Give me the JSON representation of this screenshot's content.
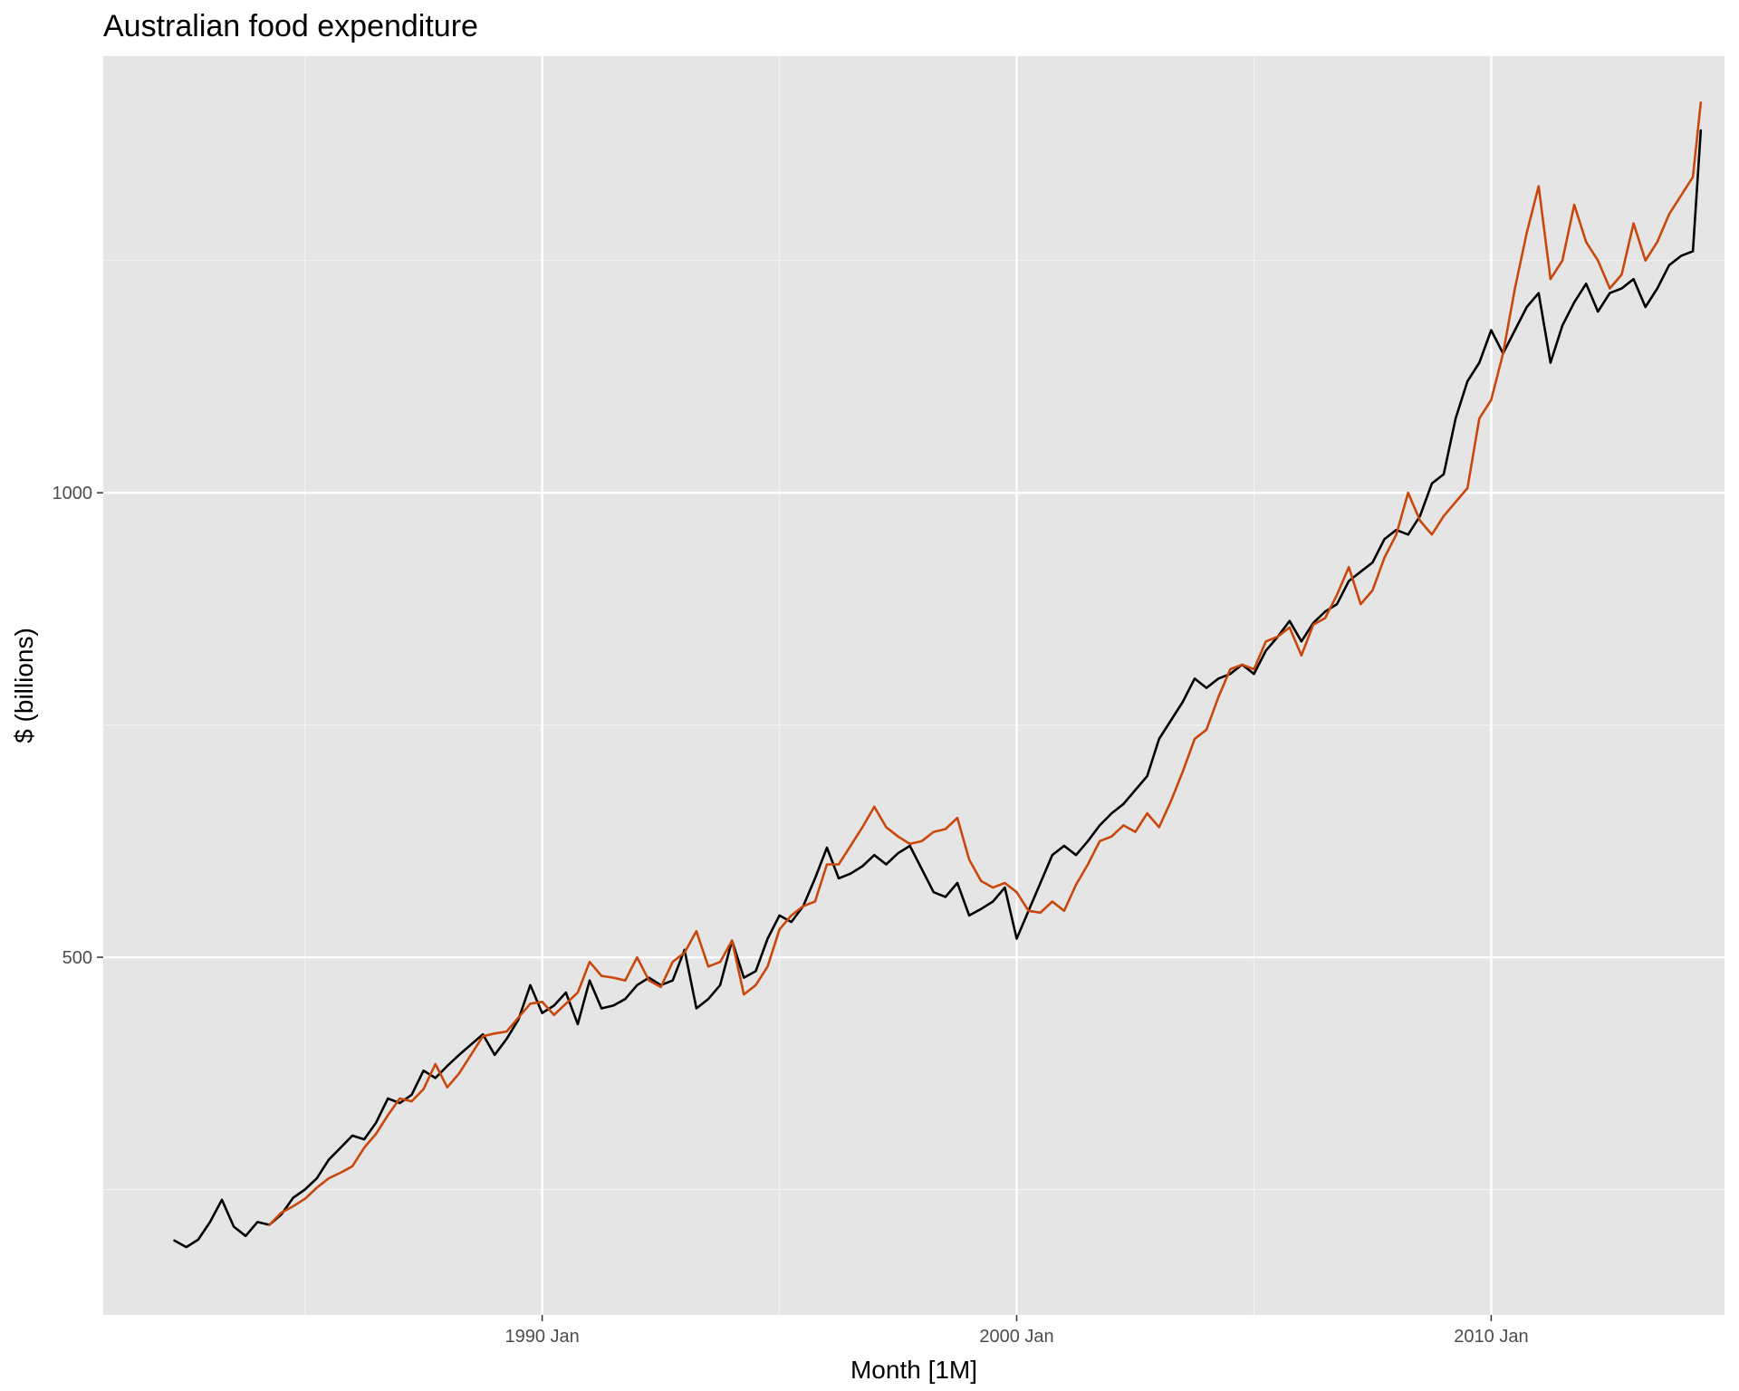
{
  "chart_data": {
    "type": "line",
    "title": "Australian food expenditure",
    "xlabel": "Month [1M]",
    "ylabel": "$ (billions)",
    "x_ticks": [
      "1990 Jan",
      "2000 Jan",
      "2010 Jan"
    ],
    "y_ticks": [
      500,
      1000
    ],
    "xlim": [
      "1980-10",
      "2014-12"
    ],
    "ylim": [
      115,
      1470
    ],
    "grid": true,
    "legend": "none",
    "colors": {
      "panel": "#e5e5e5",
      "grid_major": "#ffffff",
      "grid_minor": "#f2f2f2",
      "tick_text": "#4d4d4d",
      "series_actual": "#000000",
      "series_fitted": "#c9470b"
    },
    "series": [
      {
        "color": "#000000",
        "points": [
          [
            "1982-04",
            195
          ],
          [
            "1982-07",
            188
          ],
          [
            "1982-10",
            196
          ],
          [
            "1983-01",
            215
          ],
          [
            "1983-04",
            239
          ],
          [
            "1983-07",
            210
          ],
          [
            "1983-10",
            200
          ],
          [
            "1984-01",
            215
          ],
          [
            "1984-04",
            212
          ],
          [
            "1984-07",
            223
          ],
          [
            "1984-10",
            241
          ],
          [
            "1985-01",
            250
          ],
          [
            "1985-04",
            262
          ],
          [
            "1985-07",
            282
          ],
          [
            "1985-10",
            295
          ],
          [
            "1986-01",
            308
          ],
          [
            "1986-04",
            304
          ],
          [
            "1986-07",
            322
          ],
          [
            "1986-10",
            348
          ],
          [
            "1987-01",
            343
          ],
          [
            "1987-04",
            352
          ],
          [
            "1987-07",
            378
          ],
          [
            "1987-10",
            370
          ],
          [
            "1988-01",
            383
          ],
          [
            "1988-04",
            395
          ],
          [
            "1988-07",
            406
          ],
          [
            "1988-10",
            417
          ],
          [
            "1989-01",
            395
          ],
          [
            "1989-04",
            412
          ],
          [
            "1989-07",
            433
          ],
          [
            "1989-10",
            470
          ],
          [
            "1990-01",
            440
          ],
          [
            "1990-04",
            448
          ],
          [
            "1990-07",
            462
          ],
          [
            "1990-10",
            428
          ],
          [
            "1991-01",
            475
          ],
          [
            "1991-04",
            445
          ],
          [
            "1991-07",
            448
          ],
          [
            "1991-10",
            455
          ],
          [
            "1992-01",
            470
          ],
          [
            "1992-04",
            478
          ],
          [
            "1992-07",
            470
          ],
          [
            "1992-10",
            475
          ],
          [
            "1993-01",
            508
          ],
          [
            "1993-04",
            445
          ],
          [
            "1993-07",
            455
          ],
          [
            "1993-10",
            470
          ],
          [
            "1994-01",
            518
          ],
          [
            "1994-04",
            478
          ],
          [
            "1994-07",
            485
          ],
          [
            "1994-10",
            520
          ],
          [
            "1995-01",
            545
          ],
          [
            "1995-04",
            538
          ],
          [
            "1995-07",
            555
          ],
          [
            "1995-10",
            585
          ],
          [
            "1996-01",
            618
          ],
          [
            "1996-04",
            585
          ],
          [
            "1996-07",
            590
          ],
          [
            "1996-10",
            598
          ],
          [
            "1997-01",
            610
          ],
          [
            "1997-04",
            600
          ],
          [
            "1997-07",
            612
          ],
          [
            "1997-10",
            620
          ],
          [
            "1998-01",
            595
          ],
          [
            "1998-04",
            570
          ],
          [
            "1998-07",
            565
          ],
          [
            "1998-10",
            580
          ],
          [
            "1999-01",
            545
          ],
          [
            "1999-04",
            552
          ],
          [
            "1999-07",
            560
          ],
          [
            "1999-10",
            575
          ],
          [
            "2000-01",
            520
          ],
          [
            "2000-04",
            550
          ],
          [
            "2000-07",
            580
          ],
          [
            "2000-10",
            610
          ],
          [
            "2001-01",
            620
          ],
          [
            "2001-04",
            610
          ],
          [
            "2001-07",
            625
          ],
          [
            "2001-10",
            642
          ],
          [
            "2002-01",
            655
          ],
          [
            "2002-04",
            665
          ],
          [
            "2002-07",
            680
          ],
          [
            "2002-10",
            695
          ],
          [
            "2003-01",
            735
          ],
          [
            "2003-04",
            755
          ],
          [
            "2003-07",
            775
          ],
          [
            "2003-10",
            800
          ],
          [
            "2004-01",
            790
          ],
          [
            "2004-04",
            800
          ],
          [
            "2004-07",
            805
          ],
          [
            "2004-10",
            815
          ],
          [
            "2005-01",
            805
          ],
          [
            "2005-04",
            830
          ],
          [
            "2005-07",
            845
          ],
          [
            "2005-10",
            862
          ],
          [
            "2006-01",
            840
          ],
          [
            "2006-04",
            860
          ],
          [
            "2006-07",
            872
          ],
          [
            "2006-10",
            880
          ],
          [
            "2007-01",
            905
          ],
          [
            "2007-04",
            915
          ],
          [
            "2007-07",
            925
          ],
          [
            "2007-10",
            950
          ],
          [
            "2008-01",
            960
          ],
          [
            "2008-04",
            955
          ],
          [
            "2008-07",
            975
          ],
          [
            "2008-10",
            1010
          ],
          [
            "2009-01",
            1020
          ],
          [
            "2009-04",
            1080
          ],
          [
            "2009-07",
            1120
          ],
          [
            "2009-10",
            1140
          ],
          [
            "2010-01",
            1175
          ],
          [
            "2010-04",
            1150
          ],
          [
            "2010-07",
            1175
          ],
          [
            "2010-10",
            1200
          ],
          [
            "2011-01",
            1215
          ],
          [
            "2011-04",
            1140
          ],
          [
            "2011-07",
            1180
          ],
          [
            "2011-10",
            1205
          ],
          [
            "2012-01",
            1225
          ],
          [
            "2012-04",
            1195
          ],
          [
            "2012-07",
            1215
          ],
          [
            "2012-10",
            1220
          ],
          [
            "2013-01",
            1230
          ],
          [
            "2013-04",
            1200
          ],
          [
            "2013-07",
            1220
          ],
          [
            "2013-10",
            1245
          ],
          [
            "2014-01",
            1255
          ],
          [
            "2014-04",
            1260
          ],
          [
            "2014-06",
            1390
          ]
        ]
      },
      {
        "color": "#c9470b",
        "points": [
          [
            "1984-04",
            212
          ],
          [
            "1984-07",
            225
          ],
          [
            "1984-10",
            232
          ],
          [
            "1985-01",
            240
          ],
          [
            "1985-04",
            252
          ],
          [
            "1985-07",
            262
          ],
          [
            "1985-10",
            268
          ],
          [
            "1986-01",
            275
          ],
          [
            "1986-04",
            295
          ],
          [
            "1986-07",
            310
          ],
          [
            "1986-10",
            330
          ],
          [
            "1987-01",
            348
          ],
          [
            "1987-04",
            345
          ],
          [
            "1987-07",
            358
          ],
          [
            "1987-10",
            385
          ],
          [
            "1988-01",
            360
          ],
          [
            "1988-04",
            375
          ],
          [
            "1988-07",
            395
          ],
          [
            "1988-10",
            415
          ],
          [
            "1989-01",
            418
          ],
          [
            "1989-04",
            420
          ],
          [
            "1989-07",
            435
          ],
          [
            "1989-10",
            450
          ],
          [
            "1990-01",
            452
          ],
          [
            "1990-04",
            438
          ],
          [
            "1990-07",
            450
          ],
          [
            "1990-10",
            462
          ],
          [
            "1991-01",
            495
          ],
          [
            "1991-04",
            480
          ],
          [
            "1991-07",
            478
          ],
          [
            "1991-10",
            475
          ],
          [
            "1992-01",
            500
          ],
          [
            "1992-04",
            475
          ],
          [
            "1992-07",
            468
          ],
          [
            "1992-10",
            495
          ],
          [
            "1993-01",
            505
          ],
          [
            "1993-04",
            528
          ],
          [
            "1993-07",
            490
          ],
          [
            "1993-10",
            495
          ],
          [
            "1994-01",
            518
          ],
          [
            "1994-04",
            460
          ],
          [
            "1994-07",
            470
          ],
          [
            "1994-10",
            490
          ],
          [
            "1995-01",
            530
          ],
          [
            "1995-04",
            545
          ],
          [
            "1995-07",
            555
          ],
          [
            "1995-10",
            560
          ],
          [
            "1996-01",
            600
          ],
          [
            "1996-04",
            600
          ],
          [
            "1996-07",
            620
          ],
          [
            "1996-10",
            640
          ],
          [
            "1997-01",
            662
          ],
          [
            "1997-04",
            640
          ],
          [
            "1997-07",
            630
          ],
          [
            "1997-10",
            622
          ],
          [
            "1998-01",
            625
          ],
          [
            "1998-04",
            635
          ],
          [
            "1998-07",
            638
          ],
          [
            "1998-10",
            650
          ],
          [
            "1999-01",
            605
          ],
          [
            "1999-04",
            582
          ],
          [
            "1999-07",
            575
          ],
          [
            "1999-10",
            580
          ],
          [
            "2000-01",
            570
          ],
          [
            "2000-04",
            550
          ],
          [
            "2000-07",
            548
          ],
          [
            "2000-10",
            560
          ],
          [
            "2001-01",
            550
          ],
          [
            "2001-04",
            578
          ],
          [
            "2001-07",
            600
          ],
          [
            "2001-10",
            625
          ],
          [
            "2002-01",
            630
          ],
          [
            "2002-04",
            642
          ],
          [
            "2002-07",
            635
          ],
          [
            "2002-10",
            655
          ],
          [
            "2003-01",
            640
          ],
          [
            "2003-04",
            668
          ],
          [
            "2003-07",
            700
          ],
          [
            "2003-10",
            735
          ],
          [
            "2004-01",
            745
          ],
          [
            "2004-04",
            780
          ],
          [
            "2004-07",
            810
          ],
          [
            "2004-10",
            815
          ],
          [
            "2005-01",
            810
          ],
          [
            "2005-04",
            840
          ],
          [
            "2005-07",
            845
          ],
          [
            "2005-10",
            855
          ],
          [
            "2006-01",
            825
          ],
          [
            "2006-04",
            858
          ],
          [
            "2006-07",
            865
          ],
          [
            "2006-10",
            890
          ],
          [
            "2007-01",
            920
          ],
          [
            "2007-04",
            880
          ],
          [
            "2007-07",
            895
          ],
          [
            "2007-10",
            930
          ],
          [
            "2008-01",
            955
          ],
          [
            "2008-04",
            1000
          ],
          [
            "2008-07",
            970
          ],
          [
            "2008-10",
            955
          ],
          [
            "2009-01",
            975
          ],
          [
            "2009-04",
            990
          ],
          [
            "2009-07",
            1005
          ],
          [
            "2009-10",
            1080
          ],
          [
            "2010-01",
            1100
          ],
          [
            "2010-04",
            1150
          ],
          [
            "2010-07",
            1220
          ],
          [
            "2010-10",
            1280
          ],
          [
            "2011-01",
            1330
          ],
          [
            "2011-04",
            1230
          ],
          [
            "2011-07",
            1250
          ],
          [
            "2011-10",
            1310
          ],
          [
            "2012-01",
            1270
          ],
          [
            "2012-04",
            1250
          ],
          [
            "2012-07",
            1220
          ],
          [
            "2012-10",
            1235
          ],
          [
            "2013-01",
            1290
          ],
          [
            "2013-04",
            1250
          ],
          [
            "2013-07",
            1270
          ],
          [
            "2013-10",
            1300
          ],
          [
            "2014-01",
            1320
          ],
          [
            "2014-04",
            1340
          ],
          [
            "2014-06",
            1420
          ]
        ]
      }
    ]
  }
}
